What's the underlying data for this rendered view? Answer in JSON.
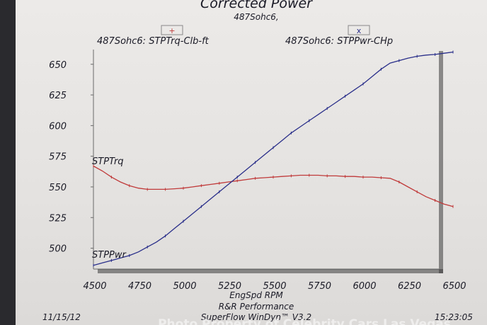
{
  "chart_data": {
    "type": "line",
    "title": "Corrected Power",
    "subtitle": "487Sohc6,",
    "xlabel": "EngSpd RPM",
    "ylabel": "",
    "xlim": [
      4500,
      6500
    ],
    "ylim": [
      483,
      662
    ],
    "x_ticks": [
      4500,
      4750,
      5000,
      5250,
      5500,
      5750,
      6000,
      6250,
      6500
    ],
    "y_ticks": [
      500,
      525,
      550,
      575,
      600,
      625,
      650
    ],
    "legend": [
      {
        "label": "487Sohc6: STPTrq-Clb-ft",
        "marker": "+",
        "color": "#c03a3a"
      },
      {
        "label": "487Sohc6: STPPwr-CHp",
        "marker": "x",
        "color": "#2a2f8a"
      }
    ],
    "series": [
      {
        "name": "STPTrq",
        "color": "#c03a3a",
        "x": [
          4500,
          4550,
          4600,
          4650,
          4700,
          4750,
          4800,
          4850,
          4900,
          4950,
          5000,
          5050,
          5100,
          5150,
          5200,
          5250,
          5300,
          5350,
          5400,
          5450,
          5500,
          5550,
          5600,
          5650,
          5700,
          5750,
          5800,
          5850,
          5900,
          5950,
          6000,
          6050,
          6100,
          6150,
          6200,
          6250,
          6300,
          6350,
          6400,
          6450,
          6500
        ],
        "values": [
          567,
          563,
          558,
          554,
          551,
          549,
          548,
          548,
          548,
          548.5,
          549,
          550,
          551,
          552,
          553,
          554,
          555,
          556,
          557,
          557.5,
          558,
          558.5,
          559,
          559.5,
          559.5,
          559.5,
          559,
          559,
          558.5,
          558.5,
          558,
          558,
          557.5,
          557,
          554,
          550,
          546,
          542,
          539,
          536,
          534
        ]
      },
      {
        "name": "STPPwr",
        "color": "#2a2f8a",
        "x": [
          4500,
          4550,
          4600,
          4650,
          4700,
          4750,
          4800,
          4850,
          4900,
          4950,
          5000,
          5050,
          5100,
          5150,
          5200,
          5250,
          5300,
          5350,
          5400,
          5450,
          5500,
          5550,
          5600,
          5650,
          5700,
          5750,
          5800,
          5850,
          5900,
          5950,
          6000,
          6050,
          6100,
          6150,
          6200,
          6250,
          6300,
          6350,
          6400,
          6450,
          6500
        ],
        "values": [
          486,
          488,
          490,
          492,
          494,
          497,
          501,
          505,
          510,
          516,
          522,
          528,
          534,
          540,
          546,
          552,
          558,
          564,
          570,
          576,
          582,
          588,
          594,
          599,
          604,
          609,
          614,
          619,
          624,
          629,
          634,
          640,
          646,
          651,
          653,
          655,
          656.5,
          657.5,
          658,
          659,
          660
        ]
      }
    ],
    "line_labels": [
      "STPTrq",
      "STPPwr"
    ],
    "grid": false
  },
  "footer": {
    "date": "11/15/12",
    "company": "R&R Performance",
    "software": "SuperFlow WinDyn™ V3.2",
    "time": "15:23:05",
    "watermark": "Photo Property of Celebrity Cars Las Vegas"
  }
}
